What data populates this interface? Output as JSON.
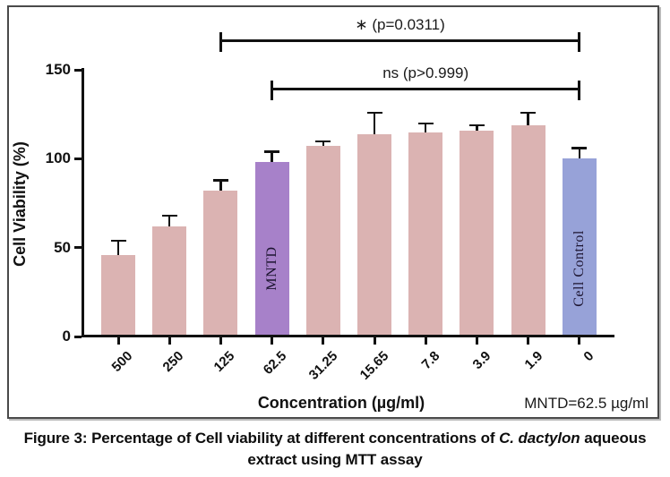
{
  "figure": {
    "note": "MNTD=62.5 µg/ml"
  },
  "caption": {
    "line1_prefix": "Figure 3: Percentage of Cell viability at different concentrations of ",
    "line1_italic": "C. dactylon",
    "line1_suffix": " aqueous",
    "line2": "extract using MTT assay"
  },
  "colors": {
    "bar_pink": "#dbb3b2",
    "bar_purple": "#a781c9",
    "bar_blue": "#97a2d8",
    "axis": "#111111",
    "border": "#4a4a4a"
  },
  "chart_data": {
    "type": "bar",
    "title": "",
    "xlabel": "Concentration (µg/ml)",
    "ylabel": "Cell Viability (%)",
    "ylim": [
      0,
      150
    ],
    "yticks": [
      0,
      50,
      100,
      150
    ],
    "grid": false,
    "legend": null,
    "categories": [
      "500",
      "250",
      "125",
      "62.5",
      "31.25",
      "15.65",
      "7.8",
      "3.9",
      "1.9",
      "0"
    ],
    "series": [
      {
        "name": "Cell Viability (%)",
        "values": [
          46,
          62,
          82,
          98,
          107,
          114,
          115,
          116,
          119,
          100
        ],
        "errors": [
          8,
          6,
          6,
          6,
          3,
          12,
          5,
          3,
          7,
          6
        ]
      }
    ],
    "bar_colors": [
      "pink",
      "pink",
      "pink",
      "purple",
      "pink",
      "pink",
      "pink",
      "pink",
      "pink",
      "blue"
    ],
    "inner_labels": [
      null,
      null,
      null,
      "MNTD",
      null,
      null,
      null,
      null,
      null,
      "Cell Control"
    ],
    "annotations": [
      {
        "text": "∗ (p=0.0311)",
        "from": "125",
        "to": "0"
      },
      {
        "text": "ns (p>0.999)",
        "from": "62.5",
        "to": "0"
      }
    ]
  }
}
